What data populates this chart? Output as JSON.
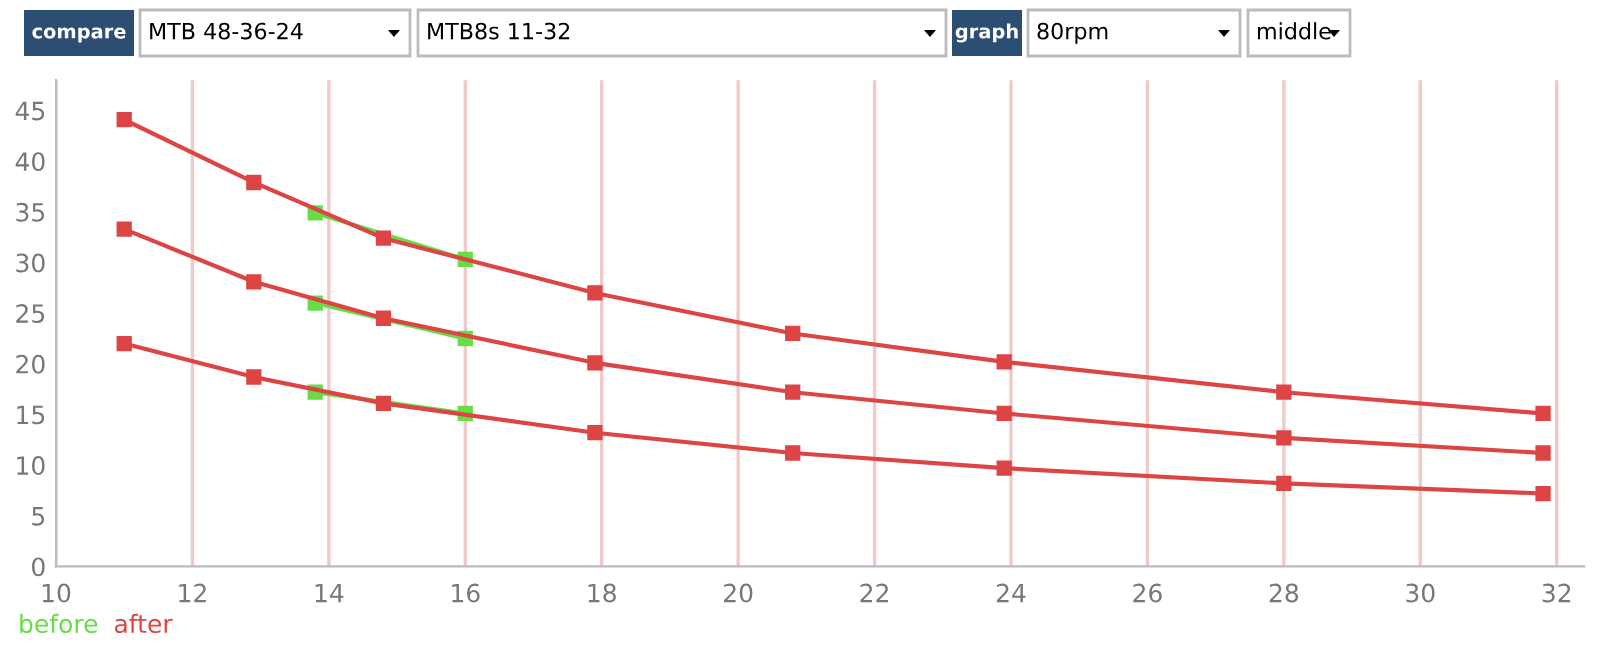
{
  "chart_data": {
    "type": "line",
    "annotations": [
      "compare",
      "MTB 48-36-24",
      "MTB8s 11-32",
      "graph",
      "80rpm",
      "middle"
    ],
    "series": [
      {
        "name": "before",
        "color": "#66dd44",
        "x": [
          13.8,
          16
        ],
        "values": [
          34.9,
          30.3
        ]
      },
      {
        "color": "#66dd44",
        "x": [
          13.8,
          16
        ],
        "values": [
          26.0,
          22.5
        ]
      },
      {
        "color": "#66dd44",
        "x": [
          13.8,
          16
        ],
        "values": [
          17.2,
          15.1
        ]
      },
      {
        "name": "after",
        "color": "#dd4444",
        "x": [
          11,
          12.9,
          14.8,
          17.9,
          20.8,
          23.9,
          28,
          31.8
        ],
        "values": [
          44.1,
          37.9,
          32.4,
          27.0,
          23.0,
          20.2,
          17.2,
          15.1
        ]
      },
      {
        "color": "#dd4444",
        "x": [
          11,
          12.9,
          14.8,
          17.9,
          20.8,
          23.9,
          28,
          31.8
        ],
        "values": [
          33.3,
          28.1,
          24.5,
          20.1,
          17.2,
          15.1,
          12.7,
          11.2
        ]
      },
      {
        "color": "#dd4444",
        "x": [
          11,
          12.9,
          14.8,
          17.9,
          20.8,
          23.9,
          28,
          31.8
        ],
        "values": [
          22.0,
          18.7,
          16.1,
          13.2,
          11.2,
          9.7,
          8.2,
          7.2
        ]
      }
    ],
    "xlim": [
      10,
      32.4
    ],
    "xticks": [
      10,
      12,
      14,
      16,
      18,
      20,
      22,
      24,
      26,
      28,
      30,
      32
    ],
    "ylim": [
      0,
      48
    ],
    "yticks": [
      0,
      5,
      10,
      15,
      20,
      25,
      30,
      35,
      40,
      45
    ],
    "grid": "x",
    "legend": "bottom left",
    "marker": "square",
    "line_style": "solid"
  }
}
